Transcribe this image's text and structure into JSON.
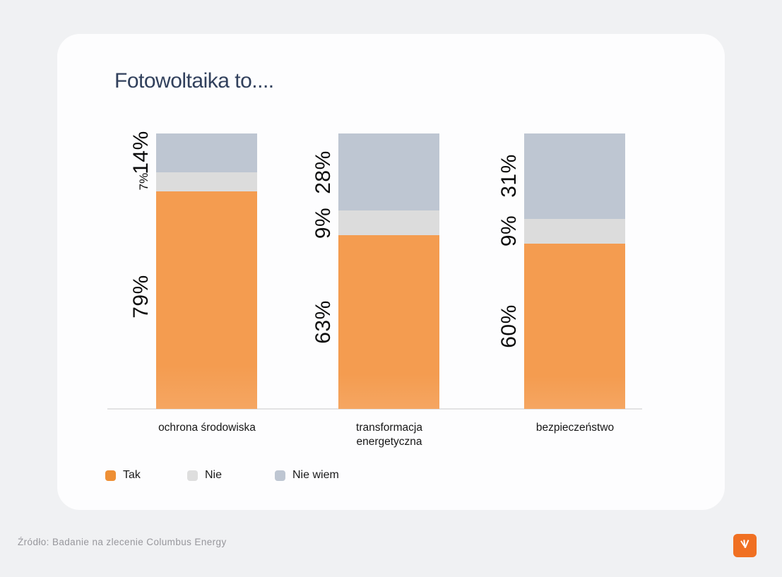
{
  "title": "Fotowoltaika to....",
  "chart_data": {
    "type": "bar",
    "stacked": true,
    "orientation": "vertical",
    "title": "Fotowoltaika to....",
    "xlabel": "",
    "ylabel": "",
    "ylim": [
      0,
      100
    ],
    "grid": false,
    "legend_position": "bottom-left",
    "categories": [
      "ochrona środowiska",
      "transformacja energetyczna",
      "bezpieczeństwo"
    ],
    "series": [
      {
        "name": "Tak",
        "color": "#F49C50",
        "values": [
          79,
          63,
          60
        ]
      },
      {
        "name": "Nie",
        "color": "#DCDCDC",
        "values": [
          7,
          9,
          9
        ]
      },
      {
        "name": "Nie wiem",
        "color": "#BEC6D2",
        "values": [
          14,
          28,
          31
        ]
      }
    ],
    "bars": [
      {
        "category": "ochrona środowiska",
        "tak": 79,
        "nie": 7,
        "nie_wiem": 14,
        "tak_label": "79%",
        "nie_label": "7%",
        "nie_wiem_label": "14%"
      },
      {
        "category": "transformacja energetyczna",
        "tak": 63,
        "nie": 9,
        "nie_wiem": 28,
        "tak_label": "63%",
        "nie_label": "9%",
        "nie_wiem_label": "28%"
      },
      {
        "category": "bezpieczeństwo",
        "tak": 60,
        "nie": 9,
        "nie_wiem": 31,
        "tak_label": "60%",
        "nie_label": "9%",
        "nie_wiem_label": "31%"
      }
    ]
  },
  "legend": {
    "items": [
      {
        "label": "Tak",
        "color": "#EE8F35"
      },
      {
        "label": "Nie",
        "color": "#DEDEDE"
      },
      {
        "label": "Nie wiem",
        "color": "#BEC6D2"
      }
    ]
  },
  "footer": {
    "source": "Źródło: Badanie na zlecenie Columbus Energy",
    "logo": {
      "name": "columbus-energy-logo",
      "color": "#F07022"
    }
  },
  "colors": {
    "page_background": "#F0F1F3",
    "card_background": "#FDFDFE",
    "title_text": "#31405C",
    "axis_line": "#E3E3E4",
    "percent_label_text": "#0B0B0B",
    "category_text": "#161616",
    "source_text": "#97979C"
  }
}
